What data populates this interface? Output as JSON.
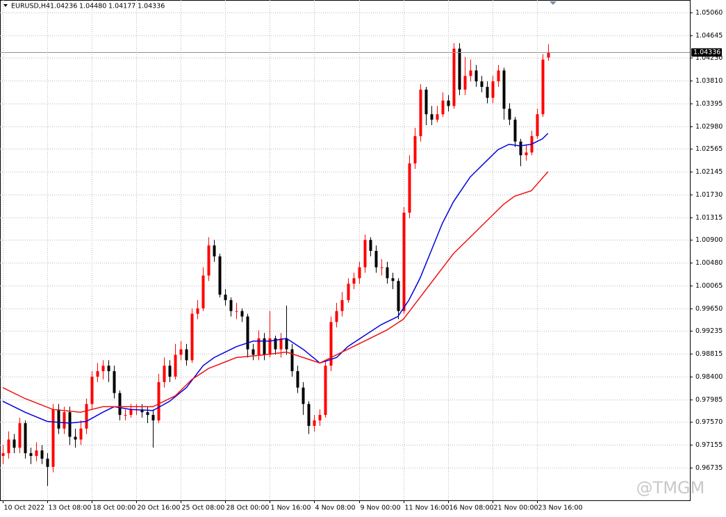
{
  "chart_data": {
    "type": "candlestick",
    "header": {
      "symbol": "EURUSD,H4",
      "open": "1.04236",
      "high": "1.04480",
      "low": "1.04177",
      "close": "1.04336"
    },
    "current_price": {
      "value": 1.04336,
      "label": "1.04336"
    },
    "watermark": "@TMGM",
    "up_color": "#ff0000",
    "down_color": "#000000",
    "xlim": [
      -0.5,
      123.5
    ],
    "xticks": [
      {
        "value": 0,
        "label": "10 Oct 2022"
      },
      {
        "value": 8,
        "label": "13 Oct 08:00"
      },
      {
        "value": 16,
        "label": "18 Oct 00:00"
      },
      {
        "value": 24,
        "label": "20 Oct 16:00"
      },
      {
        "value": 32,
        "label": "25 Oct 08:00"
      },
      {
        "value": 40,
        "label": "28 Oct 00:00"
      },
      {
        "value": 48,
        "label": "1 Nov 16:00"
      },
      {
        "value": 56,
        "label": "4 Nov 08:00"
      },
      {
        "value": 64,
        "label": "9 Nov 00:00"
      },
      {
        "value": 72,
        "label": "11 Nov 16:00"
      },
      {
        "value": 80,
        "label": "16 Nov 08:00"
      },
      {
        "value": 88,
        "label": "21 Nov 00:00"
      },
      {
        "value": 96,
        "label": "23 Nov 16:00"
      }
    ],
    "ylim": [
      0.96138,
      1.05289
    ],
    "yticks": [
      {
        "value": 1.0506,
        "label": "1.05060"
      },
      {
        "value": 1.04645,
        "label": "1.04645"
      },
      {
        "value": 1.0423,
        "label": "1.04230"
      },
      {
        "value": 1.0381,
        "label": "1.03810"
      },
      {
        "value": 1.03395,
        "label": "1.03395"
      },
      {
        "value": 1.0298,
        "label": "1.02980"
      },
      {
        "value": 1.02565,
        "label": "1.02565"
      },
      {
        "value": 1.02145,
        "label": "1.02145"
      },
      {
        "value": 1.0173,
        "label": "1.01730"
      },
      {
        "value": 1.01315,
        "label": "1.01315"
      },
      {
        "value": 1.009,
        "label": "1.00900"
      },
      {
        "value": 1.0048,
        "label": "1.00480"
      },
      {
        "value": 1.00065,
        "label": "1.00065"
      },
      {
        "value": 0.9965,
        "label": "0.99650"
      },
      {
        "value": 0.99235,
        "label": "0.99235"
      },
      {
        "value": 0.98815,
        "label": "0.98815"
      },
      {
        "value": 0.984,
        "label": "0.98400"
      },
      {
        "value": 0.97985,
        "label": "0.97985"
      },
      {
        "value": 0.9757,
        "label": "0.97570"
      },
      {
        "value": 0.97155,
        "label": "0.97155"
      },
      {
        "value": 0.96735,
        "label": "0.96735"
      }
    ],
    "grid": true,
    "open": [
      0.9695,
      0.97,
      0.9725,
      0.971,
      0.9755,
      0.97,
      0.9695,
      0.9705,
      0.969,
      0.9675,
      0.978,
      0.9745,
      0.9775,
      0.973,
      0.9725,
      0.9745,
      0.979,
      0.984,
      0.985,
      0.986,
      0.985,
      0.981,
      0.977,
      0.977,
      0.978,
      0.978,
      0.9775,
      0.977,
      0.976,
      0.983,
      0.986,
      0.984,
      0.988,
      0.989,
      0.987,
      0.9955,
      0.9965,
      1.0025,
      1.008,
      1.006,
      0.999,
      0.998,
      0.996,
      0.996,
      0.995,
      0.989,
      0.988,
      0.991,
      0.988,
      0.991,
      0.989,
      0.991,
      0.989,
      0.985,
      0.982,
      0.979,
      0.975,
      0.976,
      0.977,
      0.986,
      0.994,
      0.996,
      0.998,
      1.001,
      1.002,
      1.004,
      1.009,
      1.007,
      1.004,
      1.004,
      1.002,
      1.0015,
      0.996,
      1.014,
      1.023,
      1.028,
      1.0365,
      1.032,
      1.031,
      1.032,
      1.0345,
      1.0335,
      1.044,
      1.0365,
      1.039,
      1.04,
      1.038,
      1.037,
      1.035,
      1.038,
      1.04,
      1.033,
      1.031,
      1.027,
      1.0245,
      1.025,
      1.028,
      1.032,
      1.04236
    ],
    "high": [
      0.9715,
      0.974,
      0.9735,
      0.9765,
      0.976,
      0.971,
      0.972,
      0.9715,
      0.97,
      0.979,
      0.979,
      0.9785,
      0.9785,
      0.9745,
      0.976,
      0.98,
      0.985,
      0.9865,
      0.987,
      0.987,
      0.986,
      0.9815,
      0.978,
      0.979,
      0.979,
      0.979,
      0.9785,
      0.978,
      0.9845,
      0.9875,
      0.987,
      0.99,
      0.9905,
      0.99,
      0.9965,
      0.998,
      1.004,
      1.0095,
      1.009,
      1.0065,
      1.0,
      0.9985,
      0.9975,
      0.9965,
      0.9955,
      0.99,
      0.9925,
      0.992,
      0.996,
      0.9915,
      0.992,
      0.997,
      0.99,
      0.986,
      0.983,
      0.9795,
      0.977,
      0.978,
      0.987,
      0.995,
      0.9975,
      0.9995,
      1.002,
      1.003,
      1.005,
      1.01,
      1.0095,
      1.008,
      1.0055,
      1.005,
      1.003,
      1.002,
      1.015,
      1.0245,
      1.0295,
      1.0375,
      1.037,
      1.0335,
      1.0335,
      1.036,
      1.0355,
      1.045,
      1.045,
      1.0425,
      1.042,
      1.041,
      1.039,
      1.038,
      1.039,
      1.041,
      1.0405,
      1.034,
      1.0315,
      1.0275,
      1.0265,
      1.029,
      1.033,
      1.043,
      1.0448
    ],
    "low": [
      0.968,
      0.969,
      0.97,
      0.97,
      0.969,
      0.968,
      0.9685,
      0.968,
      0.964,
      0.9665,
      0.9735,
      0.9735,
      0.9715,
      0.971,
      0.9715,
      0.9735,
      0.978,
      0.983,
      0.9835,
      0.983,
      0.98,
      0.976,
      0.976,
      0.9765,
      0.977,
      0.9765,
      0.9755,
      0.971,
      0.9755,
      0.982,
      0.983,
      0.9835,
      0.987,
      0.986,
      0.9865,
      0.9945,
      0.996,
      1.0015,
      1.005,
      0.9985,
      0.997,
      0.995,
      0.9945,
      0.994,
      0.9875,
      0.987,
      0.987,
      0.987,
      0.9875,
      0.988,
      0.9875,
      0.988,
      0.984,
      0.981,
      0.977,
      0.9735,
      0.974,
      0.975,
      0.9765,
      0.985,
      0.993,
      0.995,
      0.9975,
      1.0,
      1.001,
      1.003,
      1.006,
      1.003,
      1.0025,
      1.001,
      1.0,
      0.9945,
      0.9955,
      1.013,
      1.022,
      1.027,
      1.03,
      1.03,
      1.0305,
      1.0315,
      1.0325,
      1.033,
      1.0355,
      1.0355,
      1.038,
      1.037,
      1.036,
      1.034,
      1.034,
      1.037,
      1.031,
      1.03,
      1.026,
      1.0225,
      1.0235,
      1.0245,
      1.0275,
      1.0315,
      1.04177
    ],
    "close": [
      0.97,
      0.9725,
      0.971,
      0.9755,
      0.97,
      0.9695,
      0.9705,
      0.969,
      0.9675,
      0.978,
      0.9745,
      0.9775,
      0.973,
      0.9725,
      0.9745,
      0.979,
      0.984,
      0.985,
      0.986,
      0.985,
      0.981,
      0.977,
      0.977,
      0.978,
      0.978,
      0.9775,
      0.977,
      0.976,
      0.983,
      0.986,
      0.984,
      0.988,
      0.989,
      0.987,
      0.9955,
      0.9965,
      1.0025,
      1.008,
      1.006,
      0.999,
      0.998,
      0.996,
      0.996,
      0.995,
      0.989,
      0.988,
      0.991,
      0.988,
      0.991,
      0.989,
      0.991,
      0.989,
      0.985,
      0.982,
      0.979,
      0.975,
      0.976,
      0.977,
      0.986,
      0.994,
      0.996,
      0.998,
      1.001,
      1.002,
      1.004,
      1.009,
      1.007,
      1.004,
      1.004,
      1.002,
      1.0015,
      0.996,
      1.014,
      1.023,
      1.028,
      1.0365,
      1.032,
      1.031,
      1.032,
      1.0345,
      1.0335,
      1.044,
      1.0365,
      1.039,
      1.04,
      1.038,
      1.037,
      1.035,
      1.038,
      1.04,
      1.033,
      1.031,
      1.027,
      1.0245,
      1.025,
      1.028,
      1.032,
      1.042,
      1.04336
    ],
    "series": [
      {
        "color": "#0000dd",
        "x": [
          0,
          4,
          8,
          12,
          15,
          18,
          20,
          23,
          27,
          30,
          33,
          36,
          38,
          42,
          45,
          48,
          51,
          54,
          57,
          60,
          62,
          65,
          68,
          71,
          73,
          75,
          77,
          79,
          81,
          84,
          87,
          89,
          91,
          93,
          95,
          97,
          98
        ],
        "values": [
          0.9795,
          0.9775,
          0.9758,
          0.9755,
          0.9758,
          0.9775,
          0.9785,
          0.978,
          0.9778,
          0.9795,
          0.982,
          0.986,
          0.9875,
          0.9895,
          0.9905,
          0.9905,
          0.991,
          0.989,
          0.9865,
          0.9875,
          0.9895,
          0.9915,
          0.9935,
          0.995,
          0.998,
          1.002,
          1.007,
          1.012,
          1.016,
          1.0205,
          1.0235,
          1.0255,
          1.0265,
          1.0262,
          1.0265,
          1.0275,
          1.0285
        ]
      },
      {
        "color": "#ee1111",
        "x": [
          0,
          4,
          9,
          14,
          18,
          22,
          27,
          31,
          34,
          37,
          42,
          47,
          51,
          54,
          57,
          61,
          65,
          69,
          72,
          75,
          78,
          81,
          85,
          88,
          90,
          92,
          95,
          98
        ],
        "values": [
          0.982,
          0.98,
          0.978,
          0.9775,
          0.9785,
          0.9785,
          0.9785,
          0.9805,
          0.9835,
          0.9855,
          0.9875,
          0.988,
          0.9885,
          0.9875,
          0.9865,
          0.9885,
          0.9905,
          0.9925,
          0.9945,
          0.9985,
          1.0025,
          1.0065,
          1.0105,
          1.0135,
          1.0155,
          1.017,
          1.018,
          1.0215
        ]
      }
    ]
  }
}
